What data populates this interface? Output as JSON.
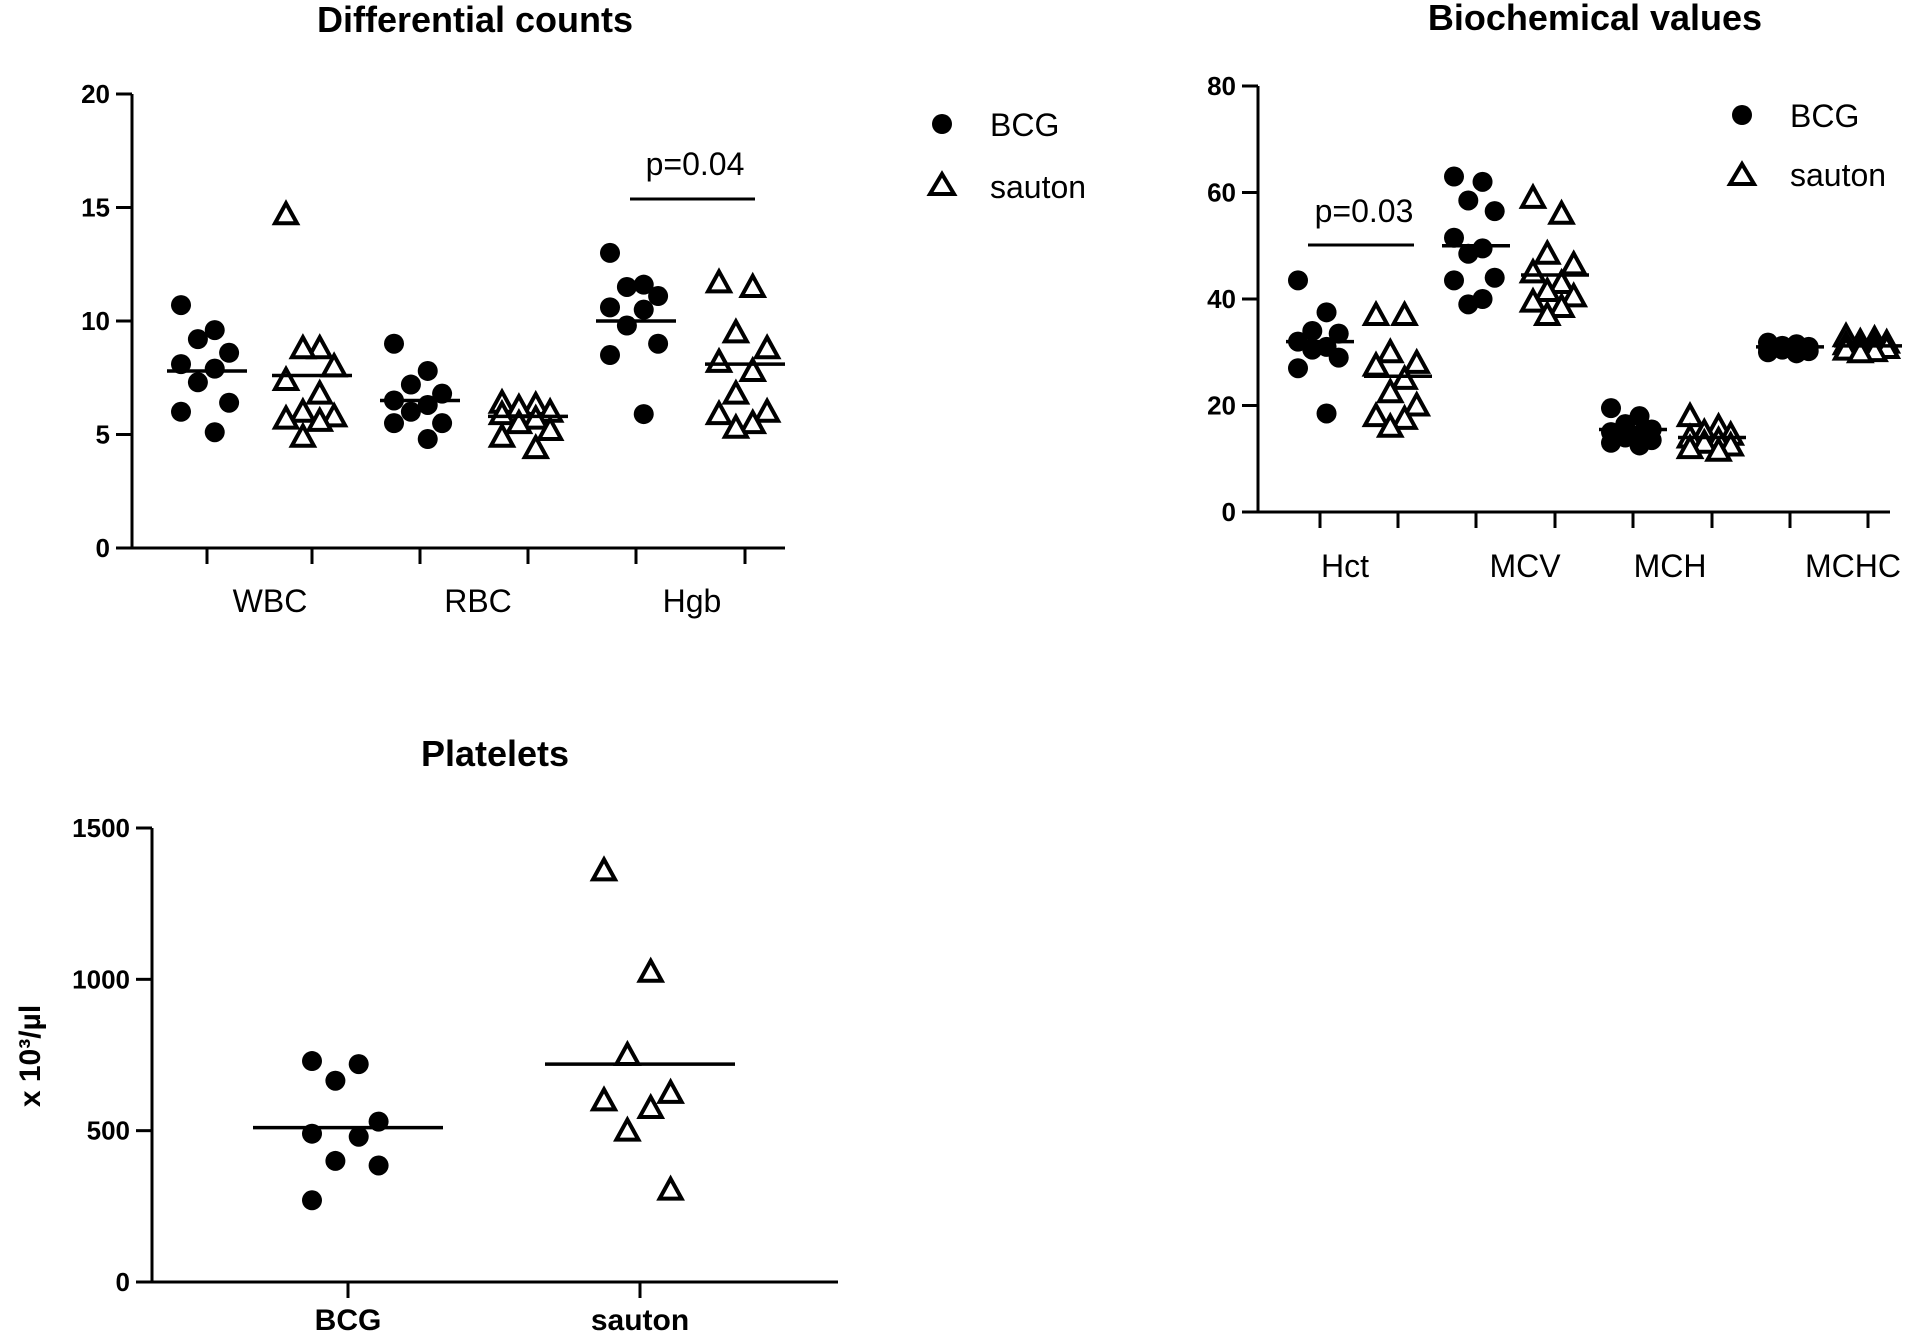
{
  "chart_data": [
    {
      "id": "p1",
      "type": "scatter",
      "title": "Differential counts",
      "ylabel": "",
      "ylim": [
        0,
        20
      ],
      "yticks": [
        0,
        5,
        10,
        15,
        20
      ],
      "categories": [
        "WBC",
        "RBC",
        "Hgb"
      ],
      "legend": {
        "position": "right",
        "entries": [
          "BCG",
          "sauton"
        ]
      },
      "annotations": [
        {
          "text": "p=0.04",
          "category": "Hgb"
        }
      ],
      "groups": [
        {
          "category": "WBC",
          "series": "BCG",
          "mean": 7.8,
          "values": [
            10.7,
            9.6,
            9.2,
            8.6,
            8.1,
            7.9,
            7.3,
            6.4,
            6.0,
            5.1
          ]
        },
        {
          "category": "WBC",
          "series": "sauton",
          "mean": 7.6,
          "values": [
            14.7,
            8.8,
            8.8,
            8.0,
            7.4,
            6.8,
            6.0,
            5.8,
            5.7,
            5.6,
            4.9
          ]
        },
        {
          "category": "RBC",
          "series": "BCG",
          "mean": 6.5,
          "values": [
            9.0,
            7.8,
            7.2,
            6.8,
            6.5,
            6.3,
            6.0,
            5.5,
            5.5,
            4.8
          ]
        },
        {
          "category": "RBC",
          "series": "sauton",
          "mean": 5.8,
          "values": [
            6.4,
            6.3,
            6.2,
            6.0,
            5.9,
            5.7,
            5.5,
            5.2,
            4.9,
            4.4
          ]
        },
        {
          "category": "Hgb",
          "series": "BCG",
          "mean": 10.0,
          "values": [
            13.0,
            11.6,
            11.5,
            11.1,
            10.6,
            10.5,
            9.8,
            9.0,
            8.5,
            5.9
          ]
        },
        {
          "category": "Hgb",
          "series": "sauton",
          "mean": 8.1,
          "values": [
            11.7,
            11.5,
            9.5,
            8.8,
            8.2,
            7.8,
            6.8,
            6.0,
            5.9,
            5.5,
            5.3
          ]
        }
      ]
    },
    {
      "id": "p2",
      "type": "scatter",
      "title": "Biochemical values",
      "ylabel": "",
      "ylim": [
        0,
        80
      ],
      "yticks": [
        0,
        20,
        40,
        60,
        80
      ],
      "categories": [
        "Hct",
        "MCV",
        "MCH",
        "MCHC"
      ],
      "legend": {
        "position": "top-right",
        "entries": [
          "BCG",
          "sauton"
        ]
      },
      "annotations": [
        {
          "text": "p=0.03",
          "category": "Hct"
        }
      ],
      "groups": [
        {
          "category": "Hct",
          "series": "BCG",
          "mean": 32.0,
          "values": [
            43.5,
            37.5,
            34.0,
            33.5,
            32.0,
            31.0,
            30.5,
            29.0,
            27.0,
            18.5
          ]
        },
        {
          "category": "Hct",
          "series": "sauton",
          "mean": 25.5,
          "values": [
            37.0,
            37.0,
            30.0,
            28.0,
            27.5,
            25.0,
            22.5,
            20.0,
            18.0,
            17.5,
            16.0
          ]
        },
        {
          "category": "MCV",
          "series": "BCG",
          "mean": 50.0,
          "values": [
            63.0,
            62.0,
            58.5,
            56.5,
            51.5,
            49.5,
            48.5,
            44.0,
            43.5,
            40.0,
            39.0
          ]
        },
        {
          "category": "MCV",
          "series": "sauton",
          "mean": 44.5,
          "values": [
            59.0,
            56.0,
            48.5,
            46.5,
            45.0,
            43.0,
            41.5,
            40.5,
            39.5,
            38.5,
            37.0
          ]
        },
        {
          "category": "MCH",
          "series": "BCG",
          "mean": 15.5,
          "values": [
            19.5,
            18.0,
            16.5,
            15.5,
            15.0,
            14.5,
            14.0,
            13.5,
            13.0,
            12.5
          ]
        },
        {
          "category": "MCH",
          "series": "sauton",
          "mean": 14.0,
          "values": [
            18.0,
            16.0,
            15.0,
            14.5,
            14.0,
            13.5,
            13.0,
            12.5,
            12.0,
            11.5
          ]
        },
        {
          "category": "MCHC",
          "series": "BCG",
          "mean": 31.0,
          "values": [
            31.8,
            31.5,
            31.2,
            31.0,
            30.8,
            30.6,
            30.5,
            30.2,
            30.0,
            29.8
          ]
        },
        {
          "category": "MCHC",
          "series": "sauton",
          "mean": 31.2,
          "values": [
            33.0,
            32.5,
            32.0,
            31.8,
            31.5,
            31.2,
            31.0,
            30.8,
            30.5,
            30.2,
            30.0
          ]
        }
      ]
    },
    {
      "id": "p3",
      "type": "scatter",
      "title": "Platelets",
      "ylabel": "x 10³/µl",
      "ylim": [
        0,
        1500
      ],
      "yticks": [
        0,
        500,
        1000,
        1500
      ],
      "categories": [
        "BCG",
        "sauton"
      ],
      "bold_categories": true,
      "groups": [
        {
          "category": "BCG",
          "series": "BCG",
          "mean": 510,
          "values": [
            730,
            720,
            665,
            530,
            490,
            480,
            400,
            385,
            270
          ]
        },
        {
          "category": "sauton",
          "series": "sauton",
          "mean": 720,
          "values": [
            1360,
            1025,
            750,
            625,
            600,
            575,
            500,
            305
          ]
        }
      ]
    }
  ]
}
